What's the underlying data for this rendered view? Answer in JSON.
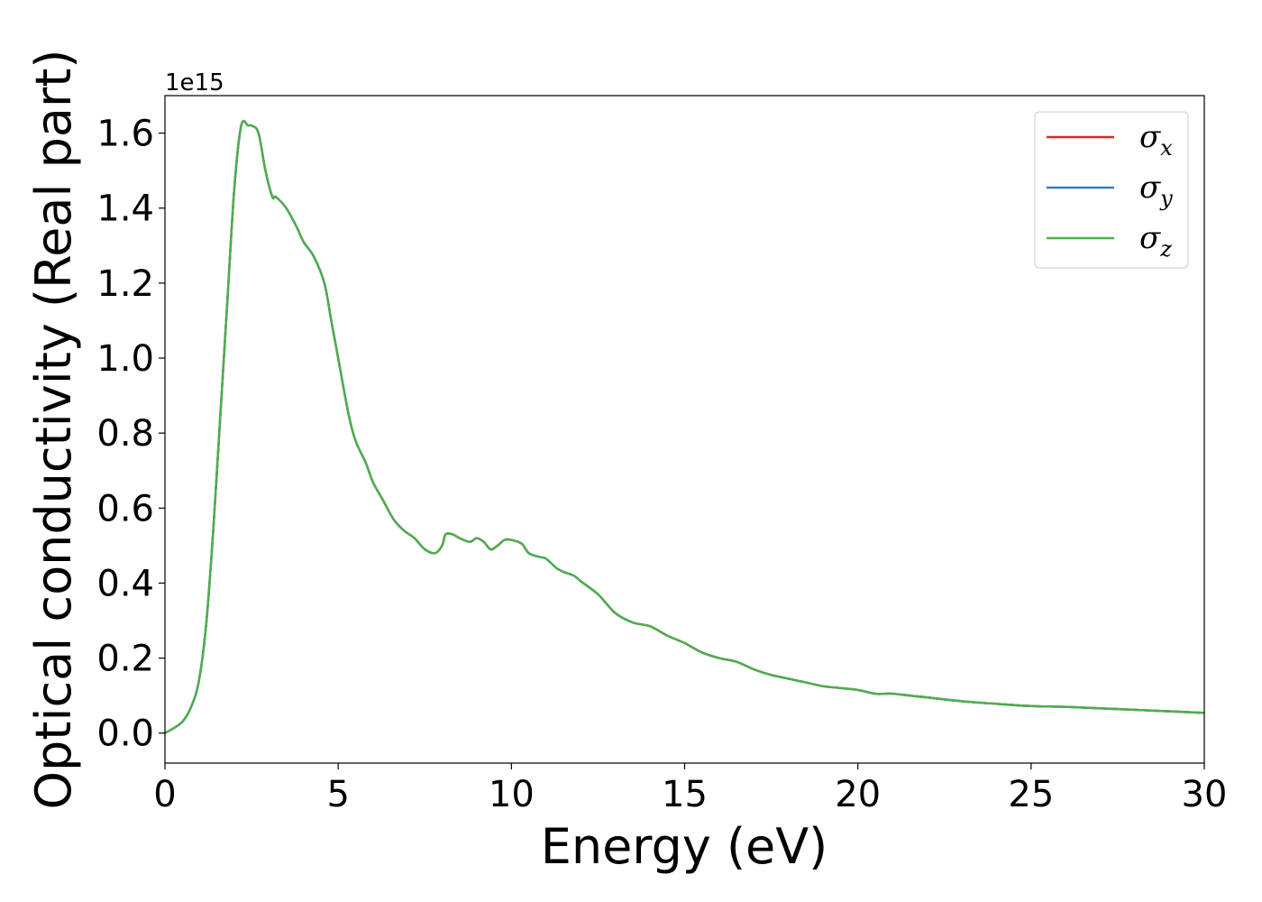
{
  "chart_data": {
    "type": "line",
    "xlabel": "Energy (eV)",
    "ylabel": "Optical conductivity (Real part)",
    "y_offset_label": "1e15",
    "y_scale_factor": 1000000000000000.0,
    "xlim": [
      0,
      30
    ],
    "ylim": [
      -0.08,
      1.7
    ],
    "xticks": [
      0,
      5,
      10,
      15,
      20,
      25,
      30
    ],
    "xtick_labels": [
      "0",
      "5",
      "10",
      "15",
      "20",
      "25",
      "30"
    ],
    "yticks": [
      0.0,
      0.2,
      0.4,
      0.6,
      0.8,
      1.0,
      1.2,
      1.4,
      1.6
    ],
    "ytick_labels": [
      "0.0",
      "0.2",
      "0.4",
      "0.6",
      "0.8",
      "1.0",
      "1.2",
      "1.4",
      "1.6"
    ],
    "grid": false,
    "legend_position": "top-right",
    "series": [
      {
        "name": "σx",
        "legend_symbol": "σ",
        "legend_subscript": "x",
        "color": "#d62728",
        "x": [
          0,
          0.5,
          0.8,
          1.0,
          1.2,
          1.4,
          1.6,
          1.8,
          2.0,
          2.2,
          2.4,
          2.5,
          2.7,
          2.9,
          3.1,
          3.2,
          3.5,
          3.8,
          4.0,
          4.3,
          4.6,
          4.8,
          5.0,
          5.3,
          5.5,
          5.8,
          6.0,
          6.3,
          6.6,
          6.9,
          7.2,
          7.5,
          7.8,
          8.0,
          8.1,
          8.3,
          8.5,
          8.8,
          9.0,
          9.2,
          9.4,
          9.6,
          9.8,
          10.0,
          10.3,
          10.5,
          10.8,
          11.0,
          11.3,
          11.5,
          11.8,
          12.0,
          12.5,
          13.0,
          13.5,
          14.0,
          14.5,
          15.0,
          15.5,
          16.0,
          16.5,
          17.0,
          17.5,
          18.0,
          18.5,
          19.0,
          19.5,
          20.0,
          20.5,
          20.8,
          21.0,
          21.5,
          22.0,
          23.0,
          24.0,
          25.0,
          26.0,
          27.0,
          28.0,
          29.0,
          30.0
        ],
        "values": [
          0.0,
          0.03,
          0.08,
          0.15,
          0.3,
          0.55,
          0.85,
          1.15,
          1.45,
          1.62,
          1.62,
          1.62,
          1.6,
          1.5,
          1.43,
          1.43,
          1.4,
          1.35,
          1.31,
          1.27,
          1.2,
          1.1,
          1.0,
          0.85,
          0.78,
          0.72,
          0.67,
          0.62,
          0.57,
          0.54,
          0.52,
          0.49,
          0.48,
          0.5,
          0.53,
          0.53,
          0.52,
          0.51,
          0.52,
          0.51,
          0.49,
          0.5,
          0.515,
          0.515,
          0.505,
          0.48,
          0.47,
          0.465,
          0.44,
          0.43,
          0.42,
          0.405,
          0.37,
          0.32,
          0.295,
          0.285,
          0.26,
          0.24,
          0.215,
          0.2,
          0.19,
          0.17,
          0.155,
          0.145,
          0.135,
          0.125,
          0.12,
          0.115,
          0.105,
          0.105,
          0.105,
          0.1,
          0.095,
          0.085,
          0.078,
          0.072,
          0.07,
          0.066,
          0.062,
          0.058,
          0.054
        ]
      },
      {
        "name": "σy",
        "legend_symbol": "σ",
        "legend_subscript": "y",
        "color": "#377eb8",
        "x": [
          0,
          0.5,
          0.8,
          1.0,
          1.2,
          1.4,
          1.6,
          1.8,
          2.0,
          2.2,
          2.4,
          2.5,
          2.7,
          2.9,
          3.1,
          3.2,
          3.5,
          3.8,
          4.0,
          4.3,
          4.6,
          4.8,
          5.0,
          5.3,
          5.5,
          5.8,
          6.0,
          6.3,
          6.6,
          6.9,
          7.2,
          7.5,
          7.8,
          8.0,
          8.1,
          8.3,
          8.5,
          8.8,
          9.0,
          9.2,
          9.4,
          9.6,
          9.8,
          10.0,
          10.3,
          10.5,
          10.8,
          11.0,
          11.3,
          11.5,
          11.8,
          12.0,
          12.5,
          13.0,
          13.5,
          14.0,
          14.5,
          15.0,
          15.5,
          16.0,
          16.5,
          17.0,
          17.5,
          18.0,
          18.5,
          19.0,
          19.5,
          20.0,
          20.5,
          20.8,
          21.0,
          21.5,
          22.0,
          23.0,
          24.0,
          25.0,
          26.0,
          27.0,
          28.0,
          29.0,
          30.0
        ],
        "values": [
          0.0,
          0.03,
          0.08,
          0.15,
          0.3,
          0.55,
          0.85,
          1.15,
          1.45,
          1.62,
          1.62,
          1.62,
          1.6,
          1.5,
          1.43,
          1.43,
          1.4,
          1.35,
          1.31,
          1.27,
          1.2,
          1.1,
          1.0,
          0.85,
          0.78,
          0.72,
          0.67,
          0.62,
          0.57,
          0.54,
          0.52,
          0.49,
          0.48,
          0.5,
          0.53,
          0.53,
          0.52,
          0.51,
          0.52,
          0.51,
          0.49,
          0.5,
          0.515,
          0.515,
          0.505,
          0.48,
          0.47,
          0.465,
          0.44,
          0.43,
          0.42,
          0.405,
          0.37,
          0.32,
          0.295,
          0.285,
          0.26,
          0.24,
          0.215,
          0.2,
          0.19,
          0.17,
          0.155,
          0.145,
          0.135,
          0.125,
          0.12,
          0.115,
          0.105,
          0.105,
          0.105,
          0.1,
          0.095,
          0.085,
          0.078,
          0.072,
          0.07,
          0.066,
          0.062,
          0.058,
          0.054
        ]
      },
      {
        "name": "σz",
        "legend_symbol": "σ",
        "legend_subscript": "z",
        "color": "#4daf4a",
        "x": [
          0,
          0.5,
          0.8,
          1.0,
          1.2,
          1.4,
          1.6,
          1.8,
          2.0,
          2.2,
          2.4,
          2.5,
          2.7,
          2.9,
          3.1,
          3.2,
          3.5,
          3.8,
          4.0,
          4.3,
          4.6,
          4.8,
          5.0,
          5.3,
          5.5,
          5.8,
          6.0,
          6.3,
          6.6,
          6.9,
          7.2,
          7.5,
          7.8,
          8.0,
          8.1,
          8.3,
          8.5,
          8.8,
          9.0,
          9.2,
          9.4,
          9.6,
          9.8,
          10.0,
          10.3,
          10.5,
          10.8,
          11.0,
          11.3,
          11.5,
          11.8,
          12.0,
          12.5,
          13.0,
          13.5,
          14.0,
          14.5,
          15.0,
          15.5,
          16.0,
          16.5,
          17.0,
          17.5,
          18.0,
          18.5,
          19.0,
          19.5,
          20.0,
          20.5,
          20.8,
          21.0,
          21.5,
          22.0,
          23.0,
          24.0,
          25.0,
          26.0,
          27.0,
          28.0,
          29.0,
          30.0
        ],
        "values": [
          0.0,
          0.03,
          0.08,
          0.15,
          0.3,
          0.55,
          0.85,
          1.15,
          1.45,
          1.62,
          1.62,
          1.62,
          1.6,
          1.5,
          1.43,
          1.43,
          1.4,
          1.35,
          1.31,
          1.27,
          1.2,
          1.1,
          1.0,
          0.85,
          0.78,
          0.72,
          0.67,
          0.62,
          0.57,
          0.54,
          0.52,
          0.49,
          0.48,
          0.5,
          0.53,
          0.53,
          0.52,
          0.51,
          0.52,
          0.51,
          0.49,
          0.5,
          0.515,
          0.515,
          0.505,
          0.48,
          0.47,
          0.465,
          0.44,
          0.43,
          0.42,
          0.405,
          0.37,
          0.32,
          0.295,
          0.285,
          0.26,
          0.24,
          0.215,
          0.2,
          0.19,
          0.17,
          0.155,
          0.145,
          0.135,
          0.125,
          0.12,
          0.115,
          0.105,
          0.105,
          0.105,
          0.1,
          0.095,
          0.085,
          0.078,
          0.072,
          0.07,
          0.066,
          0.062,
          0.058,
          0.054
        ]
      }
    ]
  }
}
